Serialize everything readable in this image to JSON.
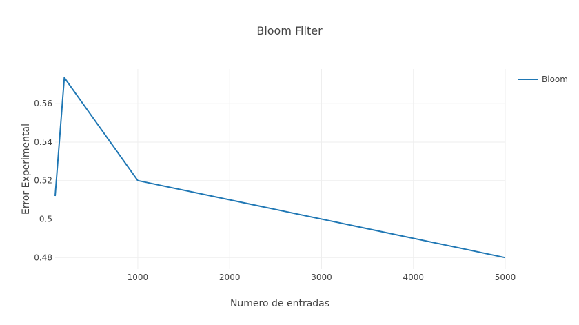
{
  "chart_data": {
    "type": "line",
    "title": "Bloom Filter",
    "xlabel": "Numero de entradas",
    "ylabel": "Error Experimental",
    "xlim": [
      100,
      5000
    ],
    "ylim": [
      0.474,
      0.578
    ],
    "xticks": [
      1000,
      2000,
      3000,
      4000,
      5000
    ],
    "xtick_labels": [
      "1000",
      "2000",
      "3000",
      "4000",
      "5000"
    ],
    "yticks": [
      0.48,
      0.5,
      0.52,
      0.54,
      0.56
    ],
    "ytick_labels": [
      "0.48",
      "0.5",
      "0.52",
      "0.54",
      "0.56"
    ],
    "grid": true,
    "legend_position": "top-right",
    "series": [
      {
        "name": "Bloom",
        "color": "#1f77b4",
        "x": [
          100,
          200,
          1000,
          5000
        ],
        "y": [
          0.512,
          0.5735,
          0.52,
          0.48
        ]
      }
    ]
  }
}
